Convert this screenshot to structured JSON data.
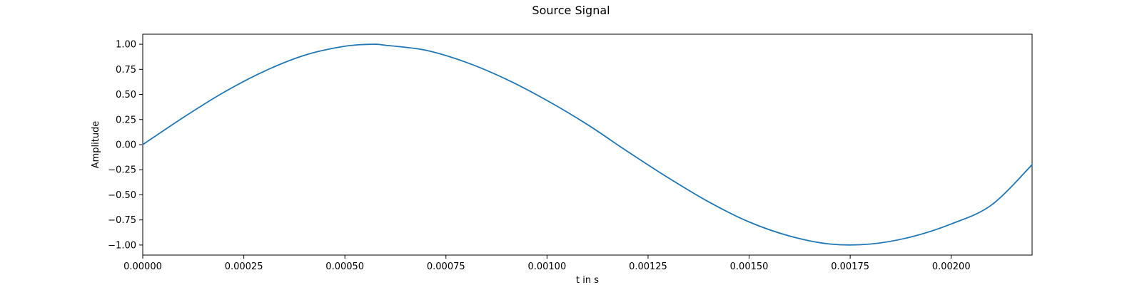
{
  "chart_data": {
    "type": "line",
    "title": "Source Signal",
    "xlabel": "t in s",
    "ylabel": "Amplitude",
    "xlim": [
      0,
      0.0022
    ],
    "ylim": [
      -1.1,
      1.1
    ],
    "grid": false,
    "x_tick_values": [
      0,
      0.00025,
      0.0005,
      0.00075,
      0.001,
      0.00125,
      0.0015,
      0.00175,
      0.002
    ],
    "x_tick_labels": [
      "0.00000",
      "0.00025",
      "0.00050",
      "0.00075",
      "0.00100",
      "0.00125",
      "0.00150",
      "0.00175",
      "0.00200"
    ],
    "y_tick_values": [
      1.0,
      0.75,
      0.5,
      0.25,
      0.0,
      -0.25,
      -0.5,
      -0.75,
      -1.0
    ],
    "y_tick_labels": [
      "1.00",
      "0.75",
      "0.50",
      "0.25",
      "0.00",
      "−0.25",
      "−0.50",
      "−0.75",
      "−1.00"
    ],
    "line_color": "#1f77b4",
    "series": [
      {
        "x": [
          0,
          0.0001,
          0.0002,
          0.0003,
          0.0004,
          0.0005,
          0.00057,
          0.0006,
          0.0007,
          0.0008,
          0.0009,
          0.001,
          0.0011,
          0.0012,
          0.0013,
          0.0014,
          0.0015,
          0.0016,
          0.0017,
          0.0018,
          0.0019,
          0.002,
          0.0021,
          0.0022
        ],
        "y": [
          0.0,
          0.27,
          0.52,
          0.73,
          0.89,
          0.98,
          1.0,
          0.99,
          0.94,
          0.82,
          0.65,
          0.44,
          0.2,
          -0.07,
          -0.33,
          -0.57,
          -0.77,
          -0.91,
          -0.99,
          -0.99,
          -0.92,
          -0.79,
          -0.6,
          -0.2
        ]
      }
    ]
  }
}
